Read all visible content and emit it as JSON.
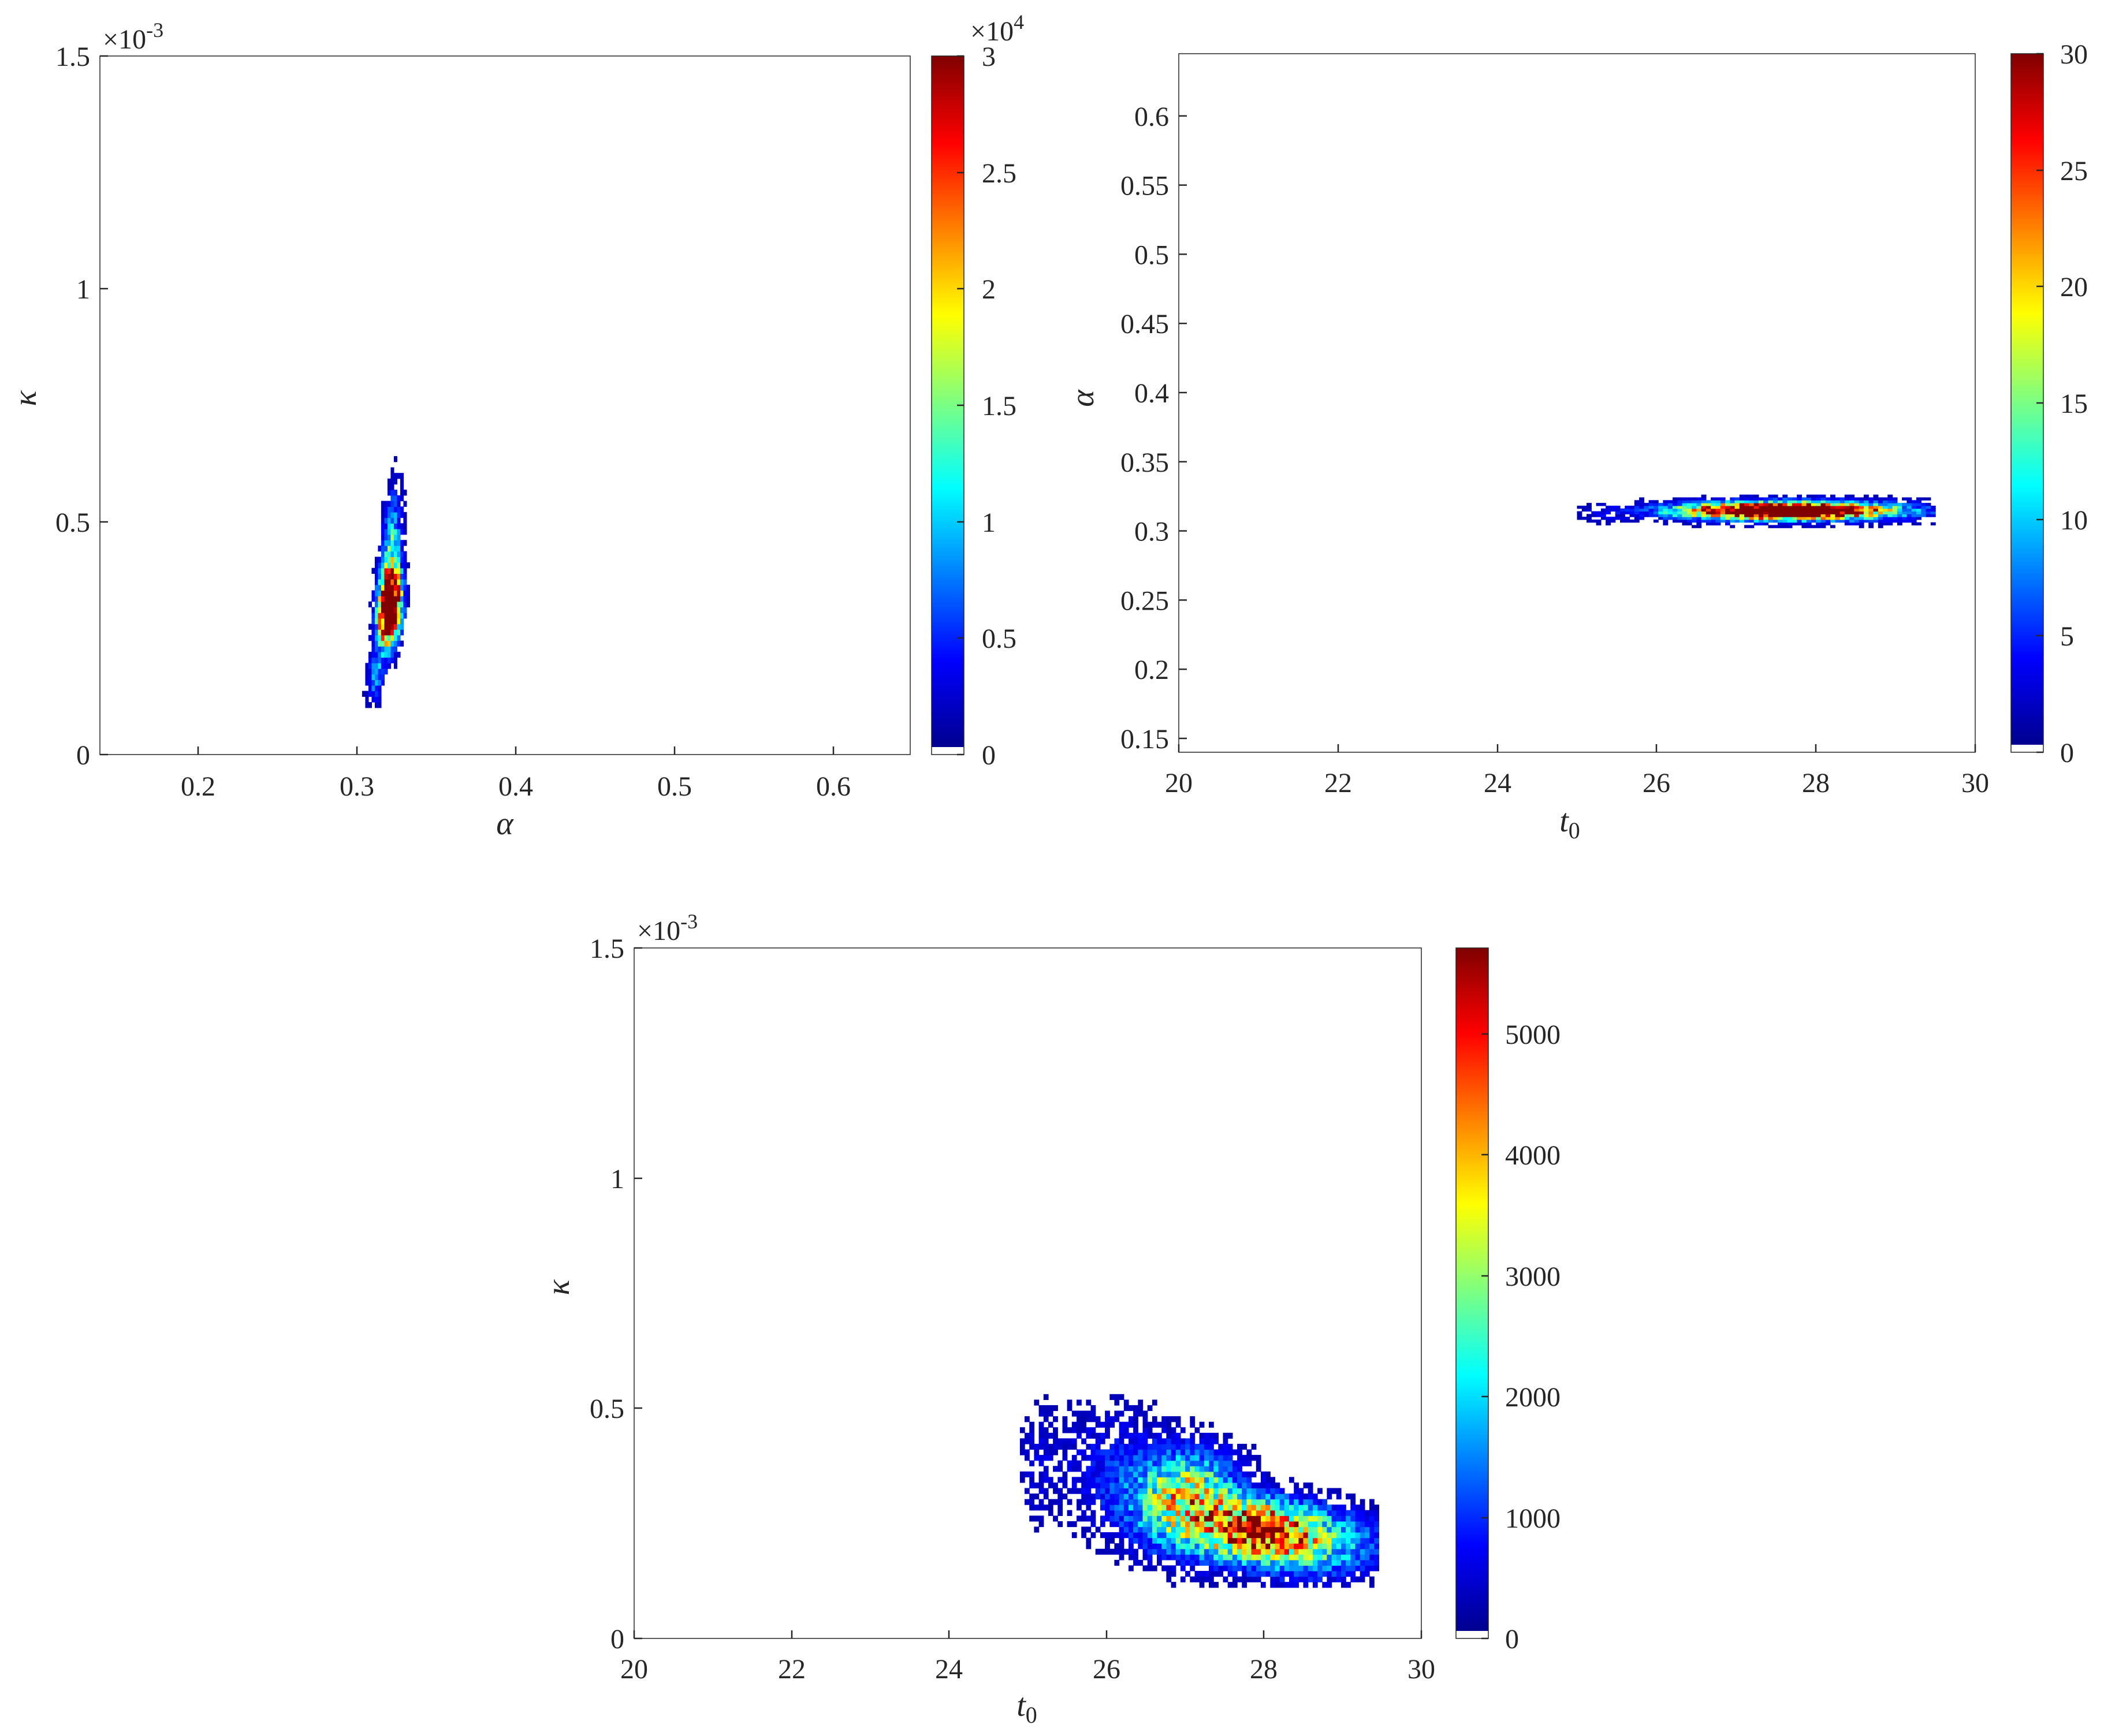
{
  "figure": {
    "panels": [
      {
        "id": "kappa-vs-alpha",
        "xlabel": "α",
        "xlabel_sub": "",
        "ylabel": "κ",
        "y_multiplier": "×10",
        "y_multiplier_exp": "-3",
        "cbar_multiplier": "×10",
        "cbar_multiplier_exp": "4",
        "xticks": [
          "0.2",
          "0.3",
          "0.4",
          "0.5",
          "0.6"
        ],
        "yticks": [
          "0",
          "0.5",
          "1",
          "1.5"
        ],
        "cbar_ticks": [
          "0",
          "0.5",
          "1",
          "1.5",
          "2",
          "2.5",
          "3"
        ]
      },
      {
        "id": "alpha-vs-t0",
        "xlabel": "t",
        "xlabel_sub": "0",
        "ylabel": "α",
        "y_multiplier": "",
        "y_multiplier_exp": "",
        "cbar_multiplier": "",
        "cbar_multiplier_exp": "",
        "xticks": [
          "20",
          "22",
          "24",
          "26",
          "28",
          "30"
        ],
        "yticks": [
          "0.15",
          "0.2",
          "0.25",
          "0.3",
          "0.35",
          "0.4",
          "0.45",
          "0.5",
          "0.55",
          "0.6"
        ],
        "cbar_ticks": [
          "0",
          "5",
          "10",
          "15",
          "20",
          "25",
          "30"
        ]
      },
      {
        "id": "kappa-vs-t0",
        "xlabel": "t",
        "xlabel_sub": "0",
        "ylabel": "κ",
        "y_multiplier": "×10",
        "y_multiplier_exp": "-3",
        "cbar_multiplier": "",
        "cbar_multiplier_exp": "",
        "xticks": [
          "20",
          "22",
          "24",
          "26",
          "28",
          "30"
        ],
        "yticks": [
          "0",
          "0.5",
          "1",
          "1.5"
        ],
        "cbar_ticks": [
          "0",
          "1000",
          "2000",
          "3000",
          "4000",
          "5000"
        ]
      }
    ]
  },
  "colormap": [
    "#00008f",
    "#0000ff",
    "#0080ff",
    "#00ffff",
    "#80ff80",
    "#ffff00",
    "#ff8000",
    "#ff0000",
    "#800000"
  ],
  "chart_data": [
    {
      "type": "heatmap",
      "title": "",
      "xlabel": "α",
      "ylabel": "κ",
      "y_scale_factor": 0.001,
      "xlim": [
        0.135,
        0.645
      ],
      "ylim": [
        0,
        1.5
      ],
      "colorbar": {
        "range": [
          0,
          30000
        ],
        "scale_factor": 10000
      },
      "blobs": [
        {
          "x": 0.3165,
          "y": 0.31,
          "sx": 0.0045,
          "sy": 0.05,
          "slope_x_per_y": 0.02,
          "max": 30000,
          "sat": 1.6
        },
        {
          "x": 0.317,
          "y": 0.42,
          "sx": 0.004,
          "sy": 0.09,
          "slope_x_per_y": 0.02,
          "max": 30000,
          "sat": 0.4
        },
        {
          "x": 0.308,
          "y": 0.16,
          "sx": 0.004,
          "sy": 0.04,
          "slope_x_per_y": 0.02,
          "max": 30000,
          "sat": 0.25
        }
      ],
      "bins": {
        "x_from": 0.298,
        "x_to": 0.33,
        "dx": 0.002,
        "y_from": 0.1,
        "y_to": 0.67,
        "dy": 0.012
      }
    },
    {
      "type": "heatmap",
      "title": "",
      "xlabel": "t₀",
      "ylabel": "α",
      "xlim": [
        20,
        30
      ],
      "ylim": [
        0.14,
        0.645
      ],
      "colorbar": {
        "range": [
          0,
          30
        ],
        "scale_factor": 1
      },
      "blobs": [
        {
          "x": 27.6,
          "y": 0.3135,
          "sx": 0.75,
          "sy": 0.0035,
          "slope_x_per_y": 0,
          "max": 30,
          "sat": 1.8
        },
        {
          "x": 27.7,
          "y": 0.313,
          "sx": 1.3,
          "sy": 0.006,
          "slope_x_per_y": 0,
          "max": 30,
          "sat": 0.22
        },
        {
          "x": 25.3,
          "y": 0.31,
          "sx": 0.2,
          "sy": 0.005,
          "slope_x_per_y": 0,
          "max": 30,
          "sat": 0.05
        }
      ],
      "bins": {
        "x_from": 25.0,
        "x_to": 29.45,
        "dx": 0.06,
        "y_from": 0.3,
        "y_to": 0.326,
        "dy": 0.002
      }
    },
    {
      "type": "heatmap",
      "title": "",
      "xlabel": "t₀",
      "ylabel": "κ",
      "y_scale_factor": 0.001,
      "xlim": [
        20,
        30
      ],
      "ylim": [
        0,
        1.5
      ],
      "colorbar": {
        "range": [
          0,
          5700
        ],
        "scale_factor": 1
      },
      "blobs": [
        {
          "x": 27.9,
          "y": 0.23,
          "sx": 0.45,
          "sy": 0.04,
          "slope_x_per_y": 0,
          "max": 5700,
          "sat": 0.85
        },
        {
          "x": 27.0,
          "y": 0.29,
          "sx": 0.45,
          "sy": 0.07,
          "slope_x_per_y": 0,
          "max": 5700,
          "sat": 0.65
        },
        {
          "x": 28.6,
          "y": 0.2,
          "sx": 0.6,
          "sy": 0.05,
          "slope_x_per_y": 0,
          "max": 5700,
          "sat": 0.4
        },
        {
          "x": 26.0,
          "y": 0.36,
          "sx": 0.5,
          "sy": 0.1,
          "slope_x_per_y": 0,
          "max": 5700,
          "sat": 0.12
        },
        {
          "x": 25.1,
          "y": 0.38,
          "sx": 0.15,
          "sy": 0.1,
          "slope_x_per_y": 0,
          "max": 5700,
          "sat": 0.06
        }
      ],
      "bins": {
        "x_from": 24.9,
        "x_to": 29.45,
        "dx": 0.06,
        "y_from": 0.11,
        "y_to": 0.66,
        "dy": 0.012
      }
    }
  ]
}
